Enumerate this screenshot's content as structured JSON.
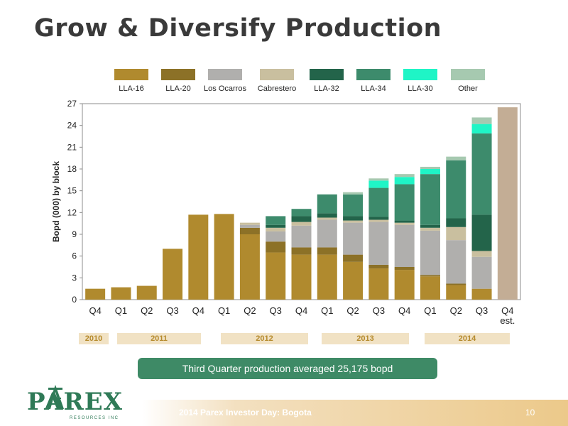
{
  "slide": {
    "title": "Grow & Diversify Production",
    "callout": "Third Quarter production averaged 25,175 bopd",
    "footer": "2014 Parex Investor Day: Bogota",
    "page_number": "10",
    "logo_text": "PAREX",
    "logo_subtext": "RESOURCES INC"
  },
  "chart_data": {
    "type": "bar",
    "stacked": true,
    "ylabel": "Bopd (000) by block",
    "ylim": [
      0,
      27
    ],
    "yticks": [
      0,
      3,
      6,
      9,
      12,
      15,
      18,
      21,
      24,
      27
    ],
    "categories": [
      "Q4",
      "Q1",
      "Q2",
      "Q3",
      "Q4",
      "Q1",
      "Q2",
      "Q3",
      "Q4",
      "Q1",
      "Q2",
      "Q3",
      "Q4",
      "Q1",
      "Q2",
      "Q3",
      "Q4 est."
    ],
    "year_groups": [
      {
        "label": "2010"
      },
      {
        "label": "2011"
      },
      {
        "label": "2012"
      },
      {
        "label": "2013"
      },
      {
        "label": "2014"
      }
    ],
    "legend_position": "top",
    "series": [
      {
        "name": "LLA-16",
        "color": "#b08a2e",
        "values": [
          1.5,
          1.7,
          1.9,
          7.0,
          11.7,
          11.8,
          9.0,
          6.5,
          6.2,
          6.2,
          5.2,
          4.3,
          4.1,
          3.2,
          2.0,
          1.5,
          0
        ]
      },
      {
        "name": "LLA-20",
        "color": "#8c7127",
        "values": [
          0,
          0,
          0,
          0,
          0,
          0,
          0.9,
          1.5,
          1.0,
          1.0,
          1.0,
          0.5,
          0.4,
          0.2,
          0.2,
          0,
          0
        ]
      },
      {
        "name": "Los Ocarros",
        "color": "#b0afad",
        "values": [
          0,
          0,
          0,
          0,
          0,
          0,
          0.4,
          1.4,
          3.0,
          3.8,
          4.4,
          5.9,
          5.8,
          6.1,
          6.0,
          4.4,
          0
        ]
      },
      {
        "name": "Cabrestero",
        "color": "#c9bf9f",
        "values": [
          0,
          0,
          0,
          0,
          0,
          0,
          0.3,
          0.5,
          0.5,
          0.3,
          0.3,
          0.3,
          0.3,
          0.4,
          1.8,
          0.8,
          0
        ]
      },
      {
        "name": "LLA-32",
        "color": "#23644a",
        "values": [
          0,
          0,
          0,
          0,
          0,
          0,
          0,
          0.4,
          0.8,
          0.6,
          0.6,
          0.4,
          0.3,
          0.4,
          1.2,
          5.0,
          0
        ]
      },
      {
        "name": "LLA-34",
        "color": "#3d8b6c",
        "values": [
          0,
          0,
          0,
          0,
          0,
          0,
          0,
          1.2,
          1.0,
          2.6,
          3.0,
          4.0,
          5.0,
          7.0,
          8.0,
          11.2,
          0
        ]
      },
      {
        "name": "LLA-30",
        "color": "#1ff5c6",
        "values": [
          0,
          0,
          0,
          0,
          0,
          0,
          0,
          0,
          0,
          0,
          0,
          1.0,
          1.0,
          0.7,
          0,
          1.3,
          0
        ]
      },
      {
        "name": "Other",
        "color": "#a6c9b0",
        "values": [
          0,
          0,
          0,
          0,
          0,
          0,
          0,
          0,
          0,
          0,
          0.3,
          0.3,
          0.4,
          0.3,
          0.5,
          0.9,
          0
        ]
      }
    ],
    "estimate": {
      "category": "Q4 est.",
      "value": 26.5,
      "color": "#c3ad95"
    }
  }
}
